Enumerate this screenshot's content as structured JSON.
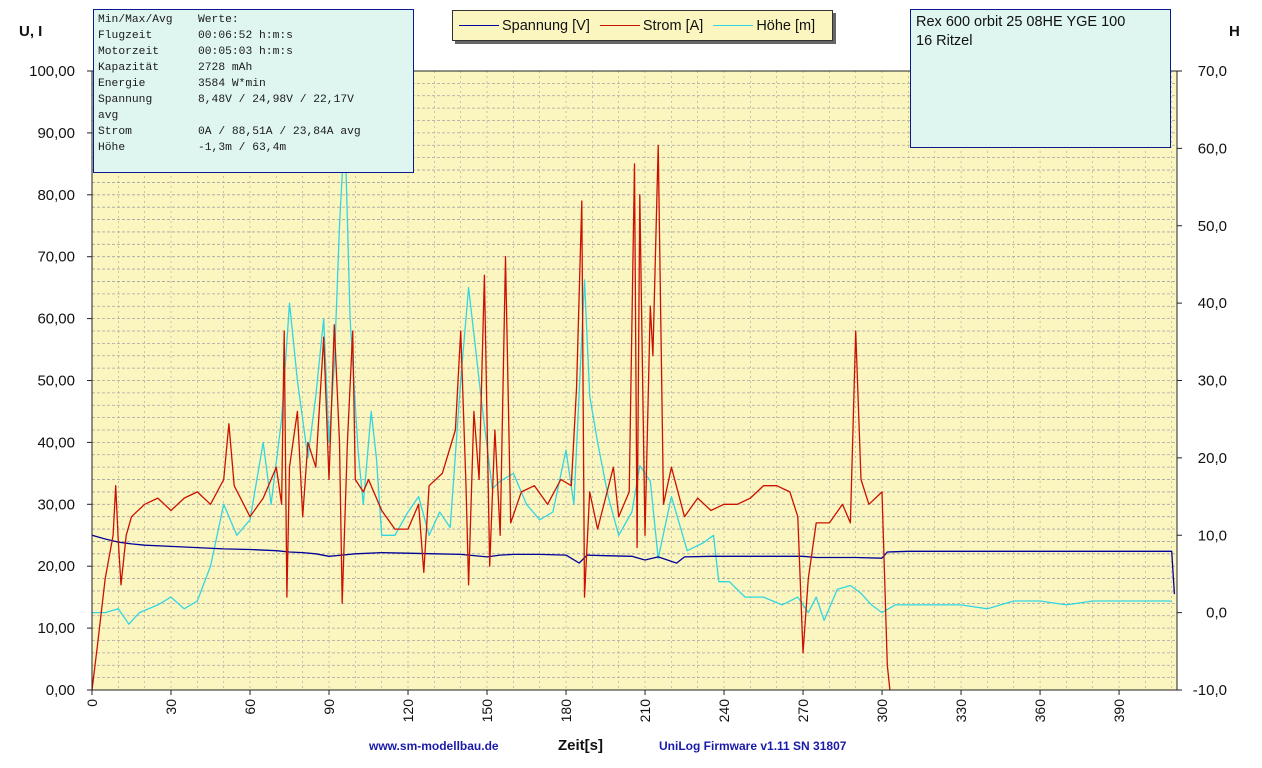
{
  "stats": {
    "header_label": "Min/Max/Avg",
    "header_value": "Werte:",
    "rows": [
      {
        "label": "Flugzeit",
        "value": "00:06:52 h:m:s"
      },
      {
        "label": "Motorzeit",
        "value": "00:05:03 h:m:s"
      },
      {
        "label": "Kapazität",
        "value": "2728 mAh"
      },
      {
        "label": "Energie",
        "value": "3584 W*min"
      },
      {
        "label": "Spannung",
        "value": "8,48V / 24,98V / 22,17V"
      },
      {
        "label": "avg",
        "value": ""
      },
      {
        "label": "Strom",
        "value": "0A / 88,51A / 23,84A avg"
      },
      {
        "label": "Höhe",
        "value": "-1,3m / 63,4m"
      }
    ]
  },
  "model": {
    "line1": "Rex 600 orbit 25 08HE YGE 100",
    "line2": "16 Ritzel"
  },
  "axes": {
    "left_title": "U, I",
    "right_title": "H",
    "x_title": "Zeit[s]"
  },
  "footer": {
    "left": "www.sm-modellbau.de",
    "right": "UniLog Firmware v1.11 SN 31807"
  },
  "chart_data": {
    "type": "line",
    "title": "",
    "xlabel": "Zeit[s]",
    "ylabel": "U, I",
    "y2label": "H",
    "xlim": [
      0,
      412
    ],
    "ylim": [
      0,
      100
    ],
    "y2lim": [
      -10,
      70
    ],
    "grid": true,
    "legend_position": "top",
    "x_ticks": [
      0,
      30,
      60,
      90,
      120,
      150,
      180,
      210,
      240,
      270,
      300,
      330,
      360,
      390
    ],
    "y_ticks": [
      "0,00",
      "10,00",
      "20,00",
      "30,00",
      "40,00",
      "50,00",
      "60,00",
      "70,00",
      "80,00",
      "90,00",
      "100,00"
    ],
    "y2_ticks": [
      "-10,0",
      "0,0",
      "10,0",
      "20,0",
      "30,0",
      "40,0",
      "50,0",
      "60,0",
      "70,0"
    ],
    "colors": {
      "plot_bg": "#fbf6c0",
      "grid": "#a4a4a4",
      "spannung": "#000099",
      "strom": "#cc1100",
      "hoehe": "#33d6e0"
    },
    "series": [
      {
        "name": "Spannung [V]",
        "axis": "left",
        "points": [
          [
            0,
            25.0
          ],
          [
            5,
            24.4
          ],
          [
            10,
            23.9
          ],
          [
            15,
            23.6
          ],
          [
            20,
            23.4
          ],
          [
            30,
            23.2
          ],
          [
            40,
            23.0
          ],
          [
            50,
            22.8
          ],
          [
            60,
            22.7
          ],
          [
            70,
            22.5
          ],
          [
            75,
            22.3
          ],
          [
            80,
            22.2
          ],
          [
            85,
            22.0
          ],
          [
            90,
            21.6
          ],
          [
            95,
            21.8
          ],
          [
            100,
            22.0
          ],
          [
            110,
            22.2
          ],
          [
            120,
            22.1
          ],
          [
            130,
            22.0
          ],
          [
            140,
            21.9
          ],
          [
            150,
            21.5
          ],
          [
            155,
            21.8
          ],
          [
            160,
            21.9
          ],
          [
            170,
            21.9
          ],
          [
            180,
            21.8
          ],
          [
            185,
            20.5
          ],
          [
            188,
            21.8
          ],
          [
            195,
            21.7
          ],
          [
            205,
            21.6
          ],
          [
            210,
            21.0
          ],
          [
            215,
            21.5
          ],
          [
            222,
            20.5
          ],
          [
            225,
            21.5
          ],
          [
            235,
            21.6
          ],
          [
            240,
            21.6
          ],
          [
            260,
            21.6
          ],
          [
            270,
            21.6
          ],
          [
            275,
            21.4
          ],
          [
            290,
            21.4
          ],
          [
            300,
            21.3
          ],
          [
            302,
            22.3
          ],
          [
            310,
            22.4
          ],
          [
            330,
            22.4
          ],
          [
            360,
            22.4
          ],
          [
            390,
            22.4
          ],
          [
            410,
            22.4
          ],
          [
            411,
            15.5
          ]
        ]
      },
      {
        "name": "Strom [A]",
        "axis": "left",
        "points": [
          [
            0,
            0
          ],
          [
            2,
            7
          ],
          [
            5,
            18
          ],
          [
            8,
            25
          ],
          [
            9,
            33
          ],
          [
            10,
            24
          ],
          [
            11,
            17
          ],
          [
            13,
            25
          ],
          [
            15,
            28
          ],
          [
            20,
            30
          ],
          [
            25,
            31
          ],
          [
            30,
            29
          ],
          [
            35,
            31
          ],
          [
            40,
            32
          ],
          [
            45,
            30
          ],
          [
            50,
            34
          ],
          [
            52,
            43
          ],
          [
            54,
            33
          ],
          [
            60,
            28
          ],
          [
            65,
            31
          ],
          [
            70,
            36
          ],
          [
            72,
            30
          ],
          [
            73,
            58
          ],
          [
            74,
            15
          ],
          [
            75,
            36
          ],
          [
            78,
            45
          ],
          [
            80,
            28
          ],
          [
            82,
            40
          ],
          [
            85,
            36
          ],
          [
            88,
            57
          ],
          [
            90,
            34
          ],
          [
            92,
            59
          ],
          [
            94,
            40
          ],
          [
            95,
            14
          ],
          [
            97,
            40
          ],
          [
            99,
            58
          ],
          [
            100,
            34
          ],
          [
            103,
            32
          ],
          [
            105,
            34
          ],
          [
            110,
            29
          ],
          [
            115,
            26
          ],
          [
            120,
            26
          ],
          [
            124,
            30
          ],
          [
            126,
            19
          ],
          [
            128,
            33
          ],
          [
            133,
            35
          ],
          [
            138,
            42
          ],
          [
            140,
            58
          ],
          [
            142,
            33
          ],
          [
            143,
            17
          ],
          [
            145,
            45
          ],
          [
            147,
            34
          ],
          [
            149,
            67
          ],
          [
            151,
            20
          ],
          [
            153,
            42
          ],
          [
            155,
            25
          ],
          [
            157,
            70
          ],
          [
            159,
            27
          ],
          [
            163,
            32
          ],
          [
            168,
            33
          ],
          [
            173,
            30
          ],
          [
            178,
            34
          ],
          [
            182,
            33
          ],
          [
            184,
            49
          ],
          [
            186,
            79
          ],
          [
            187,
            15
          ],
          [
            189,
            32
          ],
          [
            192,
            26
          ],
          [
            195,
            31
          ],
          [
            198,
            36
          ],
          [
            200,
            28
          ],
          [
            204,
            32
          ],
          [
            206,
            85
          ],
          [
            207,
            23
          ],
          [
            208,
            80
          ],
          [
            210,
            25
          ],
          [
            212,
            62
          ],
          [
            213,
            54
          ],
          [
            215,
            88
          ],
          [
            217,
            30
          ],
          [
            220,
            36
          ],
          [
            225,
            28
          ],
          [
            230,
            31
          ],
          [
            235,
            29
          ],
          [
            240,
            30
          ],
          [
            245,
            30
          ],
          [
            250,
            31
          ],
          [
            255,
            33
          ],
          [
            260,
            33
          ],
          [
            265,
            32
          ],
          [
            268,
            28
          ],
          [
            270,
            6
          ],
          [
            272,
            18
          ],
          [
            275,
            27
          ],
          [
            280,
            27
          ],
          [
            285,
            30
          ],
          [
            288,
            27
          ],
          [
            290,
            58
          ],
          [
            292,
            34
          ],
          [
            295,
            30
          ],
          [
            300,
            32
          ],
          [
            302,
            4
          ],
          [
            303,
            0
          ]
        ]
      },
      {
        "name": "Höhe [m]",
        "axis": "right",
        "points": [
          [
            0,
            0.0
          ],
          [
            5,
            0.0
          ],
          [
            10,
            0.5
          ],
          [
            14,
            -1.5
          ],
          [
            18,
            0.0
          ],
          [
            25,
            1.0
          ],
          [
            30,
            2.0
          ],
          [
            35,
            0.5
          ],
          [
            40,
            1.5
          ],
          [
            45,
            6.0
          ],
          [
            50,
            14.0
          ],
          [
            55,
            10.0
          ],
          [
            60,
            12.0
          ],
          [
            65,
            22.0
          ],
          [
            68,
            14.0
          ],
          [
            72,
            25.0
          ],
          [
            75,
            40.0
          ],
          [
            78,
            30.0
          ],
          [
            82,
            20.0
          ],
          [
            85,
            28.0
          ],
          [
            88,
            38.0
          ],
          [
            90,
            22.0
          ],
          [
            92,
            32.0
          ],
          [
            94,
            50.0
          ],
          [
            96,
            63.0
          ],
          [
            98,
            38.0
          ],
          [
            101,
            21.0
          ],
          [
            103,
            14.0
          ],
          [
            106,
            26.0
          ],
          [
            108,
            20.0
          ],
          [
            110,
            10.0
          ],
          [
            115,
            10.0
          ],
          [
            120,
            13.0
          ],
          [
            124,
            15.0
          ],
          [
            128,
            10.0
          ],
          [
            132,
            13.0
          ],
          [
            136,
            11.0
          ],
          [
            140,
            30.0
          ],
          [
            143,
            42.0
          ],
          [
            145,
            36.0
          ],
          [
            148,
            27.0
          ],
          [
            152,
            16.0
          ],
          [
            155,
            17.0
          ],
          [
            160,
            18.0
          ],
          [
            165,
            14.0
          ],
          [
            170,
            12.0
          ],
          [
            175,
            13.0
          ],
          [
            180,
            21.0
          ],
          [
            183,
            14.0
          ],
          [
            187,
            43.0
          ],
          [
            189,
            28.0
          ],
          [
            192,
            22.0
          ],
          [
            196,
            15.0
          ],
          [
            200,
            10.0
          ],
          [
            205,
            13.0
          ],
          [
            208,
            19.0
          ],
          [
            212,
            17.0
          ],
          [
            215,
            7.0
          ],
          [
            220,
            15.0
          ],
          [
            226,
            8.0
          ],
          [
            232,
            9.0
          ],
          [
            236,
            10.0
          ],
          [
            238,
            4.0
          ],
          [
            242,
            4.0
          ],
          [
            248,
            2.0
          ],
          [
            255,
            2.0
          ],
          [
            262,
            1.0
          ],
          [
            268,
            2.0
          ],
          [
            272,
            0.0
          ],
          [
            275,
            2.0
          ],
          [
            278,
            -1.0
          ],
          [
            283,
            3.0
          ],
          [
            288,
            3.5
          ],
          [
            292,
            2.5
          ],
          [
            296,
            1.0
          ],
          [
            300,
            0.0
          ],
          [
            305,
            1.0
          ],
          [
            320,
            1.0
          ],
          [
            330,
            1.0
          ],
          [
            340,
            0.5
          ],
          [
            350,
            1.5
          ],
          [
            360,
            1.5
          ],
          [
            370,
            1.0
          ],
          [
            380,
            1.5
          ],
          [
            390,
            1.5
          ],
          [
            400,
            1.5
          ],
          [
            410,
            1.5
          ]
        ]
      }
    ]
  }
}
